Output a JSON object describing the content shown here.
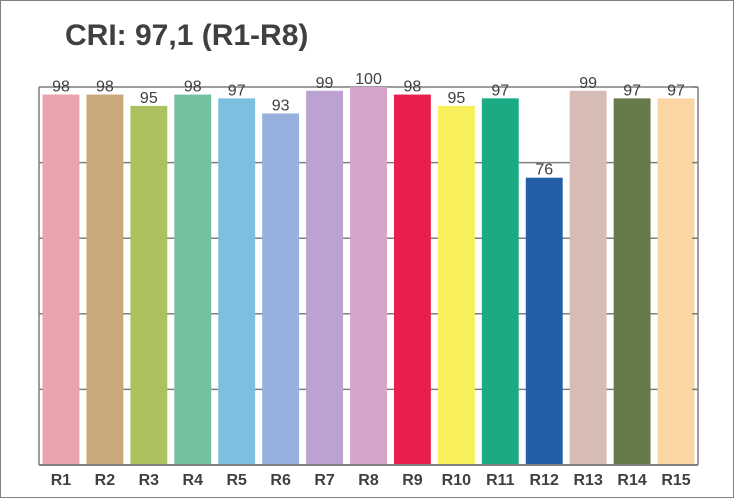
{
  "chart_data": {
    "type": "bar",
    "title": "CRI: 97,1 (R1-R8)",
    "xlabel": "",
    "ylabel": "",
    "ylim": [
      0,
      100
    ],
    "grid": "horizontal",
    "categories": [
      "R1",
      "R2",
      "R3",
      "R4",
      "R5",
      "R6",
      "R7",
      "R8",
      "R9",
      "R10",
      "R11",
      "R12",
      "R13",
      "R14",
      "R15"
    ],
    "values": [
      98,
      98,
      95,
      98,
      97,
      93,
      99,
      100,
      98,
      95,
      97,
      76,
      99,
      97,
      97
    ],
    "value_labels": [
      "98",
      "98",
      "95",
      "98",
      "97",
      "93",
      "99",
      "100",
      "98",
      "95",
      "97",
      "76",
      "99",
      "97",
      "97"
    ],
    "colors": [
      "#e8a3ad",
      "#c9a87b",
      "#acc260",
      "#72c19f",
      "#7bc0e0",
      "#97b0de",
      "#bca2d0",
      "#d5a4c9",
      "#e81e4c",
      "#f7f05a",
      "#1aab85",
      "#235ea8",
      "#d7bcb5",
      "#677b4a",
      "#fcd5a4"
    ]
  }
}
